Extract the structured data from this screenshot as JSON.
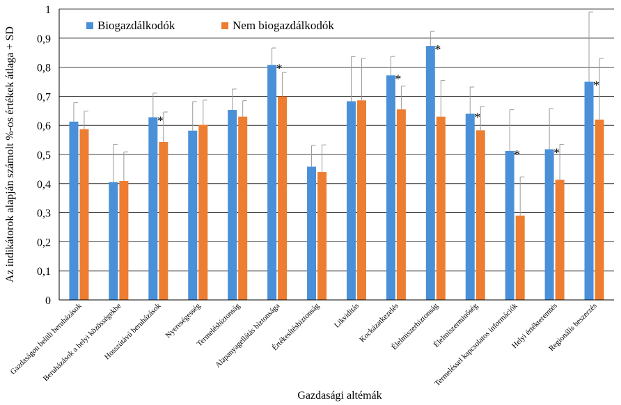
{
  "chart_data": {
    "type": "bar",
    "xlabel": "Gazdasági altémák",
    "ylabel": "Az indikátorok alapján számolt %-os értékek átlaga + SD",
    "ylim": [
      0,
      1
    ],
    "yticks": [
      0,
      0.1,
      0.2,
      0.3,
      0.4,
      0.5,
      0.6,
      0.7,
      0.8,
      0.9,
      1
    ],
    "ytick_labels": [
      "0",
      "0,1",
      "0,2",
      "0,3",
      "0,4",
      "0,5",
      "0,6",
      "0,7",
      "0,8",
      "0,9",
      "1"
    ],
    "grid": true,
    "legend_position": "top-left",
    "categories": [
      "Gazdaságon belüli beruházások",
      "Beruházások a helyi közösségekbe",
      "Hosszútávú beruházások",
      "Nyereségesség",
      "Termelésbiztonság",
      "Alapanyagellátás biztonsága",
      "Értékesítésbiztonság",
      "Likviditás",
      "Kockázatkezelés",
      "Élelmiszerbiztonság",
      "Élelmiszerminőség",
      "Termeléssel kapcsolatos információk",
      "Helyi értékteremtés",
      "Regionális beszerzés"
    ],
    "series": [
      {
        "name": "Biogazdálkodók",
        "color": "#4a90d9",
        "values": [
          0.613,
          0.405,
          0.628,
          0.582,
          0.653,
          0.808,
          0.458,
          0.683,
          0.772,
          0.873,
          0.64,
          0.512,
          0.518,
          0.75
        ],
        "sd": [
          0.065,
          0.13,
          0.083,
          0.1,
          0.072,
          0.058,
          0.073,
          0.153,
          0.065,
          0.05,
          0.092,
          0.142,
          0.14,
          0.24
        ]
      },
      {
        "name": "Nem biogazdálkodók",
        "color": "#ed7d31",
        "values": [
          0.587,
          0.409,
          0.543,
          0.602,
          0.63,
          0.7,
          0.44,
          0.686,
          0.655,
          0.63,
          0.583,
          0.29,
          0.413,
          0.62
        ],
        "sd": [
          0.062,
          0.1,
          0.103,
          0.085,
          0.055,
          0.082,
          0.093,
          0.145,
          0.08,
          0.125,
          0.082,
          0.133,
          0.122,
          0.21
        ]
      }
    ],
    "significance": [
      {
        "category_index": 2,
        "label": "*"
      },
      {
        "category_index": 5,
        "label": "*"
      },
      {
        "category_index": 8,
        "label": "*"
      },
      {
        "category_index": 9,
        "label": "*"
      },
      {
        "category_index": 10,
        "label": "*"
      },
      {
        "category_index": 11,
        "label": "*"
      },
      {
        "category_index": 12,
        "label": "*"
      },
      {
        "category_index": 13,
        "label": "*"
      }
    ]
  }
}
